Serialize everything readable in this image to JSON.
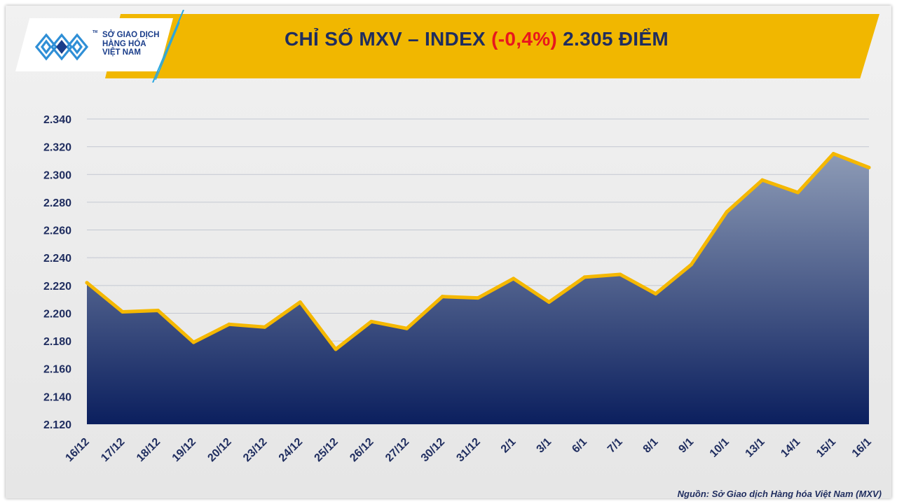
{
  "header": {
    "title_prefix": "CHỈ SỐ MXV – INDEX",
    "change": "(-0,4%)",
    "title_suffix": "2.305 ĐIỂM"
  },
  "logo": {
    "line1": "SỞ GIAO DỊCH",
    "line2": "HÀNG HÓA",
    "line3": "VIỆT NAM",
    "tm": "TM"
  },
  "source": "Nguồn: Sở Giao dịch Hàng hóa Việt Nam (MXV)",
  "colors": {
    "banner": "#f1b700",
    "line": "#f5b800",
    "area_top": "#8d9bb6",
    "area_bottom": "#0b1f5e",
    "axis_text": "#1f2d5f",
    "change_red": "#e8161d"
  },
  "chart_data": {
    "type": "area",
    "categories": [
      "16/12",
      "17/12",
      "18/12",
      "19/12",
      "20/12",
      "23/12",
      "24/12",
      "25/12",
      "26/12",
      "27/12",
      "30/12",
      "31/12",
      "2/1",
      "3/1",
      "6/1",
      "7/1",
      "8/1",
      "9/1",
      "10/1",
      "13/1",
      "14/1",
      "15/1",
      "16/1"
    ],
    "values": [
      2222,
      2201,
      2202,
      2179,
      2192,
      2190,
      2208,
      2174,
      2194,
      2189,
      2212,
      2211,
      2225,
      2208,
      2226,
      2228,
      2214,
      2235,
      2273,
      2296,
      2287,
      2315,
      2305
    ],
    "ylim": [
      2120,
      2340
    ],
    "yticks": [
      2120,
      2140,
      2160,
      2180,
      2200,
      2220,
      2240,
      2260,
      2280,
      2300,
      2320,
      2340
    ],
    "ytick_labels": [
      "2.120",
      "2.140",
      "2.160",
      "2.180",
      "2.200",
      "2.220",
      "2.240",
      "2.260",
      "2.280",
      "2.300",
      "2.320",
      "2.340"
    ],
    "grid": true
  }
}
